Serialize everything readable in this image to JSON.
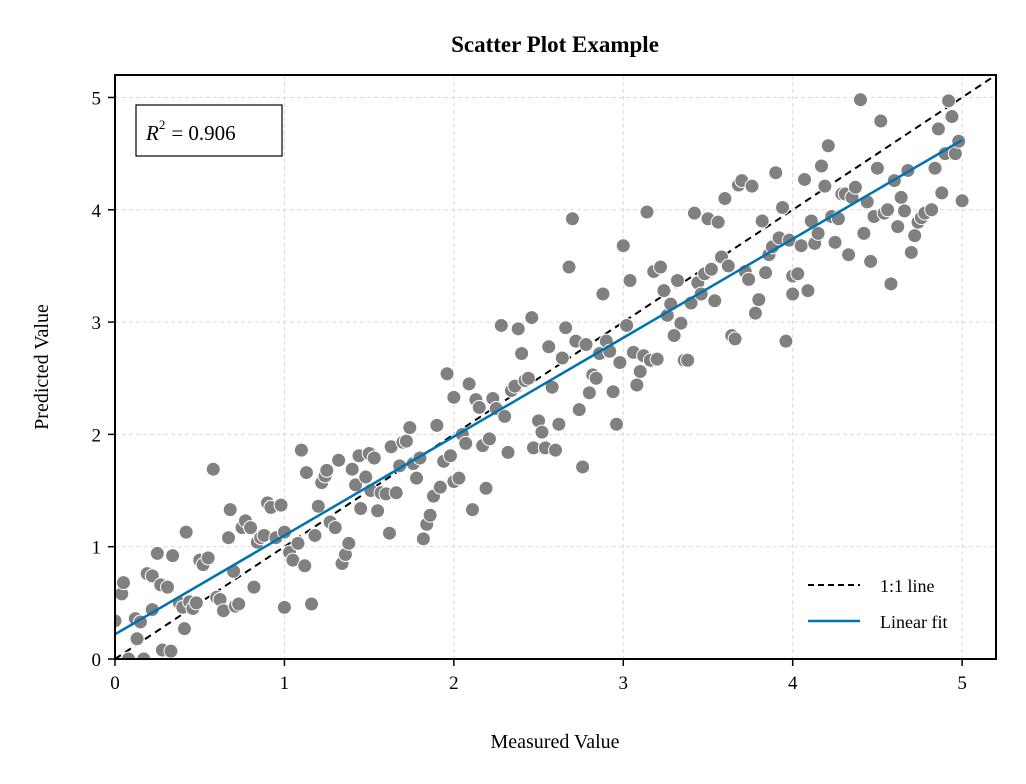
{
  "chart_data": {
    "type": "scatter",
    "title": "Scatter Plot Example",
    "xlabel": "Measured Value",
    "ylabel": "Predicted Value",
    "xlim": [
      0,
      5.2
    ],
    "ylim": [
      0,
      5.2
    ],
    "xticks": [
      "0",
      "1",
      "2",
      "3",
      "4",
      "5"
    ],
    "yticks": [
      "0",
      "1",
      "2",
      "3",
      "4",
      "5"
    ],
    "grid": true,
    "legend_position": "bottom-right",
    "annotation": {
      "r2_symbol": "R",
      "r2_exponent": "2",
      "r2_value": "= 0.906"
    },
    "legend": [
      {
        "label": "1:1 line",
        "style": "dashed",
        "color": "#000000"
      },
      {
        "label": "Linear fit",
        "style": "solid",
        "color": "#0072b2"
      }
    ],
    "colors": {
      "points": "#808080",
      "fit": "#0072b2",
      "identity": "#000000"
    },
    "fit_line": {
      "x": [
        0,
        5
      ],
      "y": [
        0.22,
        4.62
      ]
    },
    "identity_line": {
      "x": [
        0,
        5.2
      ],
      "y": [
        0,
        5.2
      ]
    },
    "points": [
      [
        0.0,
        0.34
      ],
      [
        0.04,
        0.58
      ],
      [
        0.05,
        0.68
      ],
      [
        0.08,
        0.0
      ],
      [
        0.12,
        0.36
      ],
      [
        0.13,
        0.18
      ],
      [
        0.15,
        0.33
      ],
      [
        0.17,
        0.0
      ],
      [
        0.19,
        0.76
      ],
      [
        0.22,
        0.74
      ],
      [
        0.22,
        0.44
      ],
      [
        0.25,
        0.94
      ],
      [
        0.27,
        0.66
      ],
      [
        0.28,
        0.08
      ],
      [
        0.31,
        0.64
      ],
      [
        0.33,
        0.07
      ],
      [
        0.34,
        0.92
      ],
      [
        0.38,
        0.5
      ],
      [
        0.4,
        0.46
      ],
      [
        0.41,
        0.27
      ],
      [
        0.42,
        1.13
      ],
      [
        0.44,
        0.51
      ],
      [
        0.46,
        0.45
      ],
      [
        0.48,
        0.5
      ],
      [
        0.5,
        0.88
      ],
      [
        0.52,
        0.84
      ],
      [
        0.55,
        0.9
      ],
      [
        0.58,
        1.69
      ],
      [
        0.6,
        0.55
      ],
      [
        0.62,
        0.53
      ],
      [
        0.64,
        0.43
      ],
      [
        0.67,
        1.08
      ],
      [
        0.68,
        1.33
      ],
      [
        0.7,
        0.78
      ],
      [
        0.71,
        0.47
      ],
      [
        0.73,
        0.49
      ],
      [
        0.75,
        1.17
      ],
      [
        0.77,
        1.23
      ],
      [
        0.8,
        1.17
      ],
      [
        0.82,
        0.64
      ],
      [
        0.84,
        1.04
      ],
      [
        0.86,
        1.08
      ],
      [
        0.88,
        1.1
      ],
      [
        0.9,
        1.39
      ],
      [
        0.92,
        1.35
      ],
      [
        0.95,
        1.08
      ],
      [
        0.98,
        1.37
      ],
      [
        1.0,
        1.13
      ],
      [
        1.0,
        0.46
      ],
      [
        1.03,
        0.95
      ],
      [
        1.05,
        0.88
      ],
      [
        1.08,
        1.03
      ],
      [
        1.1,
        1.86
      ],
      [
        1.12,
        0.83
      ],
      [
        1.13,
        1.66
      ],
      [
        1.16,
        0.49
      ],
      [
        1.18,
        1.1
      ],
      [
        1.2,
        1.36
      ],
      [
        1.22,
        1.57
      ],
      [
        1.24,
        1.63
      ],
      [
        1.25,
        1.68
      ],
      [
        1.27,
        1.22
      ],
      [
        1.3,
        1.17
      ],
      [
        1.32,
        1.77
      ],
      [
        1.34,
        0.85
      ],
      [
        1.36,
        0.93
      ],
      [
        1.38,
        1.03
      ],
      [
        1.4,
        1.69
      ],
      [
        1.42,
        1.55
      ],
      [
        1.44,
        1.81
      ],
      [
        1.45,
        1.34
      ],
      [
        1.48,
        1.62
      ],
      [
        1.5,
        1.83
      ],
      [
        1.51,
        1.5
      ],
      [
        1.53,
        1.79
      ],
      [
        1.55,
        1.32
      ],
      [
        1.57,
        1.48
      ],
      [
        1.6,
        1.47
      ],
      [
        1.62,
        1.12
      ],
      [
        1.63,
        1.89
      ],
      [
        1.66,
        1.48
      ],
      [
        1.68,
        1.72
      ],
      [
        1.7,
        1.93
      ],
      [
        1.72,
        1.94
      ],
      [
        1.74,
        2.06
      ],
      [
        1.76,
        1.74
      ],
      [
        1.78,
        1.61
      ],
      [
        1.8,
        1.79
      ],
      [
        1.82,
        1.07
      ],
      [
        1.84,
        1.2
      ],
      [
        1.86,
        1.28
      ],
      [
        1.88,
        1.45
      ],
      [
        1.9,
        2.08
      ],
      [
        1.92,
        1.53
      ],
      [
        1.94,
        1.76
      ],
      [
        1.96,
        2.54
      ],
      [
        1.98,
        1.81
      ],
      [
        2.0,
        2.33
      ],
      [
        2.0,
        1.58
      ],
      [
        2.03,
        1.61
      ],
      [
        2.05,
        2.0
      ],
      [
        2.07,
        1.92
      ],
      [
        2.09,
        2.45
      ],
      [
        2.11,
        1.33
      ],
      [
        2.13,
        2.31
      ],
      [
        2.15,
        2.24
      ],
      [
        2.17,
        1.9
      ],
      [
        2.19,
        1.52
      ],
      [
        2.21,
        1.96
      ],
      [
        2.23,
        2.32
      ],
      [
        2.25,
        2.23
      ],
      [
        2.28,
        2.97
      ],
      [
        2.3,
        2.16
      ],
      [
        2.32,
        1.84
      ],
      [
        2.34,
        2.39
      ],
      [
        2.36,
        2.43
      ],
      [
        2.38,
        2.94
      ],
      [
        2.4,
        2.72
      ],
      [
        2.42,
        2.48
      ],
      [
        2.44,
        2.5
      ],
      [
        2.46,
        3.04
      ],
      [
        2.47,
        1.88
      ],
      [
        2.5,
        2.12
      ],
      [
        2.52,
        2.02
      ],
      [
        2.54,
        1.88
      ],
      [
        2.56,
        2.78
      ],
      [
        2.58,
        2.42
      ],
      [
        2.6,
        1.86
      ],
      [
        2.62,
        2.09
      ],
      [
        2.64,
        2.68
      ],
      [
        2.66,
        2.95
      ],
      [
        2.68,
        3.49
      ],
      [
        2.7,
        3.92
      ],
      [
        2.72,
        2.83
      ],
      [
        2.74,
        2.22
      ],
      [
        2.76,
        1.71
      ],
      [
        2.78,
        2.8
      ],
      [
        2.8,
        2.37
      ],
      [
        2.82,
        2.53
      ],
      [
        2.84,
        2.5
      ],
      [
        2.86,
        2.72
      ],
      [
        2.88,
        3.25
      ],
      [
        2.9,
        2.83
      ],
      [
        2.92,
        2.74
      ],
      [
        2.94,
        2.38
      ],
      [
        2.96,
        2.09
      ],
      [
        2.98,
        2.64
      ],
      [
        3.0,
        3.68
      ],
      [
        3.02,
        2.97
      ],
      [
        3.04,
        3.37
      ],
      [
        3.06,
        2.73
      ],
      [
        3.08,
        2.44
      ],
      [
        3.1,
        2.56
      ],
      [
        3.12,
        2.7
      ],
      [
        3.14,
        3.98
      ],
      [
        3.16,
        2.66
      ],
      [
        3.18,
        3.45
      ],
      [
        3.2,
        2.67
      ],
      [
        3.22,
        3.49
      ],
      [
        3.24,
        3.28
      ],
      [
        3.26,
        3.06
      ],
      [
        3.28,
        3.16
      ],
      [
        3.3,
        2.88
      ],
      [
        3.32,
        3.37
      ],
      [
        3.34,
        2.99
      ],
      [
        3.36,
        2.66
      ],
      [
        3.38,
        2.66
      ],
      [
        3.4,
        3.17
      ],
      [
        3.42,
        3.97
      ],
      [
        3.44,
        3.35
      ],
      [
        3.46,
        3.25
      ],
      [
        3.48,
        3.43
      ],
      [
        3.5,
        3.92
      ],
      [
        3.52,
        3.47
      ],
      [
        3.54,
        3.19
      ],
      [
        3.56,
        3.89
      ],
      [
        3.58,
        3.58
      ],
      [
        3.6,
        4.1
      ],
      [
        3.62,
        3.5
      ],
      [
        3.64,
        2.88
      ],
      [
        3.66,
        2.85
      ],
      [
        3.68,
        4.22
      ],
      [
        3.7,
        4.26
      ],
      [
        3.72,
        3.45
      ],
      [
        3.74,
        3.38
      ],
      [
        3.76,
        4.21
      ],
      [
        3.78,
        3.08
      ],
      [
        3.8,
        3.2
      ],
      [
        3.82,
        3.9
      ],
      [
        3.84,
        3.44
      ],
      [
        3.86,
        3.6
      ],
      [
        3.88,
        3.67
      ],
      [
        3.9,
        4.33
      ],
      [
        3.92,
        3.75
      ],
      [
        3.94,
        4.02
      ],
      [
        3.96,
        2.83
      ],
      [
        3.98,
        3.73
      ],
      [
        4.0,
        3.25
      ],
      [
        4.0,
        3.41
      ],
      [
        4.03,
        3.43
      ],
      [
        4.05,
        3.68
      ],
      [
        4.07,
        4.27
      ],
      [
        4.09,
        3.28
      ],
      [
        4.11,
        3.9
      ],
      [
        4.13,
        3.7
      ],
      [
        4.15,
        3.79
      ],
      [
        4.17,
        4.39
      ],
      [
        4.19,
        4.21
      ],
      [
        4.21,
        4.57
      ],
      [
        4.23,
        3.94
      ],
      [
        4.25,
        3.71
      ],
      [
        4.27,
        3.92
      ],
      [
        4.29,
        4.14
      ],
      [
        4.31,
        4.14
      ],
      [
        4.33,
        3.6
      ],
      [
        4.35,
        4.11
      ],
      [
        4.37,
        4.2
      ],
      [
        4.4,
        4.98
      ],
      [
        4.42,
        3.79
      ],
      [
        4.44,
        4.07
      ],
      [
        4.46,
        3.54
      ],
      [
        4.48,
        3.94
      ],
      [
        4.5,
        4.37
      ],
      [
        4.52,
        4.79
      ],
      [
        4.54,
        3.97
      ],
      [
        4.56,
        4.0
      ],
      [
        4.58,
        3.34
      ],
      [
        4.6,
        4.26
      ],
      [
        4.62,
        3.85
      ],
      [
        4.64,
        4.11
      ],
      [
        4.66,
        3.99
      ],
      [
        4.68,
        4.35
      ],
      [
        4.7,
        3.62
      ],
      [
        4.72,
        3.77
      ],
      [
        4.74,
        3.89
      ],
      [
        4.76,
        3.93
      ],
      [
        4.78,
        3.97
      ],
      [
        4.82,
        4.0
      ],
      [
        4.84,
        4.37
      ],
      [
        4.86,
        4.72
      ],
      [
        4.88,
        4.15
      ],
      [
        4.9,
        4.5
      ],
      [
        4.92,
        4.97
      ],
      [
        4.94,
        4.83
      ],
      [
        4.96,
        4.5
      ],
      [
        4.98,
        4.61
      ],
      [
        5.0,
        4.08
      ]
    ]
  }
}
